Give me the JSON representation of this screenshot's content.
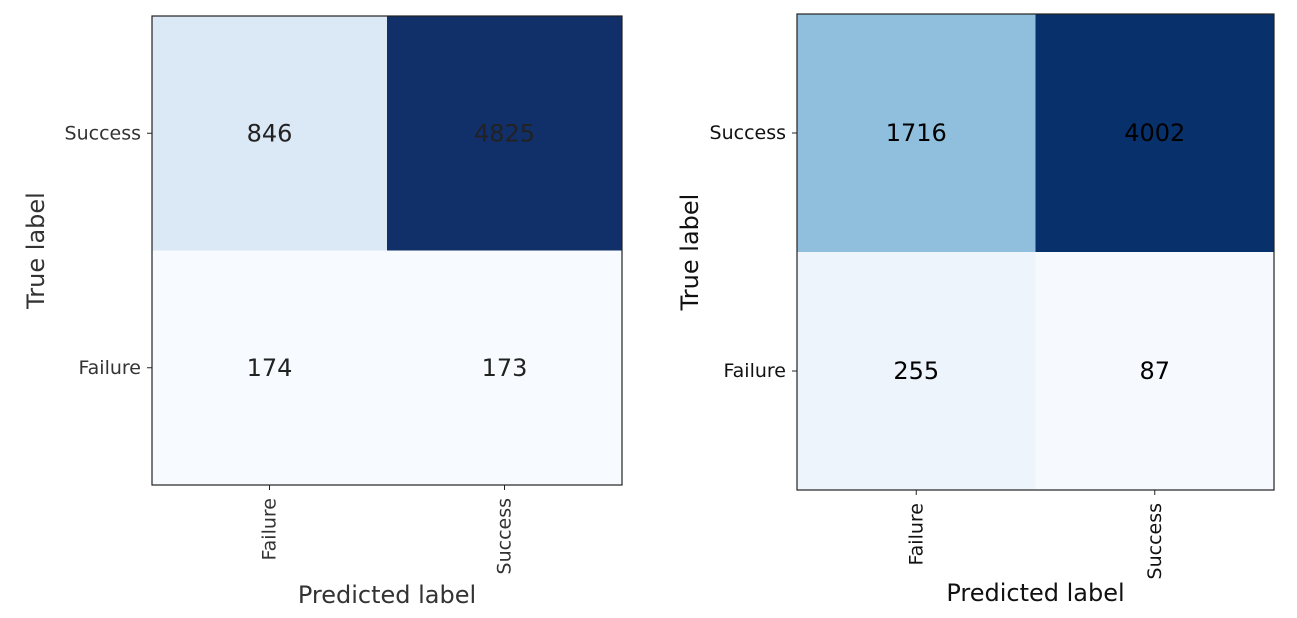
{
  "chart_data": [
    {
      "type": "heatmap",
      "title": "",
      "xlabel": "Predicted label",
      "ylabel": "True label",
      "x_categories": [
        "Failure",
        "Success"
      ],
      "y_categories": [
        "Success",
        "Failure"
      ],
      "values": [
        [
          846,
          4825
        ],
        [
          174,
          173
        ]
      ],
      "colormap": "Blues",
      "cell_colors": [
        [
          "#dbe8f5",
          "#112f69"
        ],
        [
          "#f7fbff",
          "#f7fbff"
        ]
      ],
      "text_colors": [
        [
          "#222222",
          "#222222"
        ],
        [
          "#222222",
          "#222222"
        ]
      ]
    },
    {
      "type": "heatmap",
      "title": "",
      "xlabel": "Predicted label",
      "ylabel": "True label",
      "x_categories": [
        "Failure",
        "Success"
      ],
      "y_categories": [
        "Success",
        "Failure"
      ],
      "values": [
        [
          1716,
          4002
        ],
        [
          255,
          87
        ]
      ],
      "colormap": "Blues",
      "cell_colors": [
        [
          "#8fbfdd",
          "#08306b"
        ],
        [
          "#edf4fc",
          "#f6faff"
        ]
      ],
      "text_colors": [
        [
          "#000000",
          "#000000"
        ],
        [
          "#000000",
          "#000000"
        ]
      ]
    }
  ]
}
